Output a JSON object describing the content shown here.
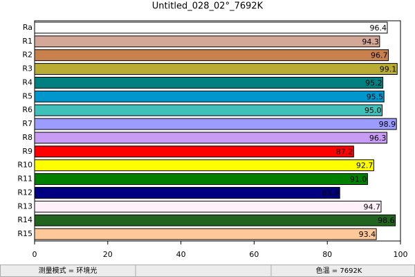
{
  "chart_data": {
    "type": "hbar",
    "title": "Untitled_028_02°_7692K",
    "categories": [
      "Ra",
      "R1",
      "R2",
      "R3",
      "R4",
      "R5",
      "R6",
      "R7",
      "R8",
      "R9",
      "R10",
      "R11",
      "R12",
      "R13",
      "R14",
      "R15"
    ],
    "values": [
      96.4,
      94.3,
      96.7,
      99.1,
      95.2,
      95.5,
      95.0,
      98.9,
      96.3,
      87.2,
      92.7,
      91.0,
      83.4,
      94.7,
      98.6,
      93.4
    ],
    "value_labels": [
      "96.4",
      "94.3",
      "96.7",
      "99.1",
      "95.2",
      "95.5",
      "95.0",
      "98.9",
      "96.3",
      "87.2",
      "92.7",
      "91.0",
      "83.4",
      "94.7",
      "98.6",
      "93.4"
    ],
    "colors": [
      "#ffffff",
      "#d4a898",
      "#c8804c",
      "#b8ac34",
      "#008080",
      "#0098cc",
      "#40c0b8",
      "#9c9cff",
      "#c89cf4",
      "#ff0000",
      "#ffff00",
      "#008000",
      "#000080",
      "#fff0fa",
      "#206420",
      "#ffc898"
    ],
    "xlim": [
      0,
      100
    ],
    "xticks": [
      0,
      20,
      40,
      60,
      80,
      100
    ],
    "grid": false,
    "annotations": [
      "测量模式 = 环境光",
      "色温 = 7692K"
    ]
  }
}
